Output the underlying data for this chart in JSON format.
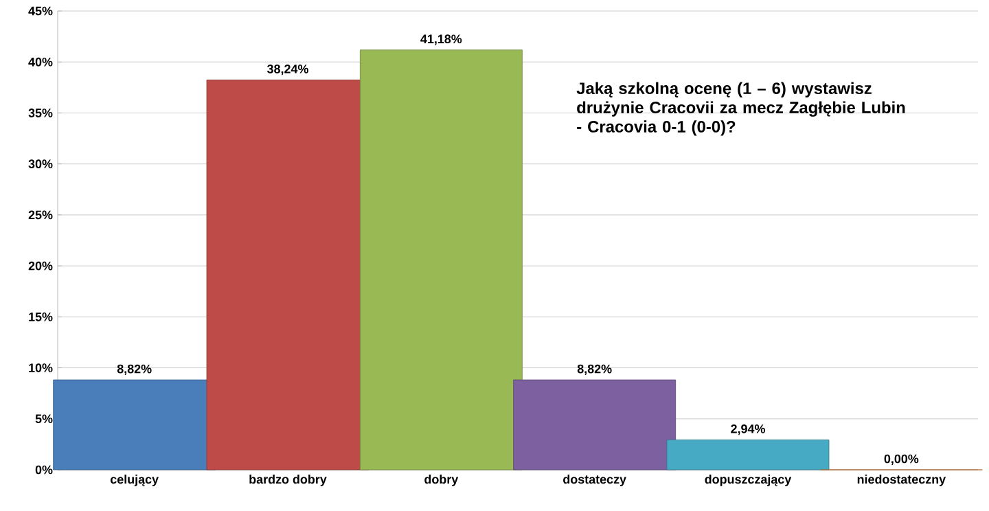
{
  "chart_data": {
    "type": "bar",
    "categories": [
      "celujący",
      "bardzo dobry",
      "dobry",
      "dostateczy",
      "dopuszczający",
      "niedostateczny"
    ],
    "values": [
      8.82,
      38.24,
      41.18,
      8.82,
      2.94,
      0.0
    ],
    "colors": [
      "#4a7ebb",
      "#be4b48",
      "#98b954",
      "#7d60a0",
      "#46aac5",
      "#f79646"
    ],
    "value_labels": [
      "8,82%",
      "38,24%",
      "41,18%",
      "8,82%",
      "2,94%",
      "0,00%"
    ],
    "ylim": [
      0,
      45
    ],
    "yticks": [
      {
        "value": 0,
        "label": "0%"
      },
      {
        "value": 5,
        "label": "5%"
      },
      {
        "value": 10,
        "label": "10%"
      },
      {
        "value": 15,
        "label": "15%"
      },
      {
        "value": 20,
        "label": "20%"
      },
      {
        "value": 25,
        "label": "25%"
      },
      {
        "value": 30,
        "label": "30%"
      },
      {
        "value": 35,
        "label": "35%"
      },
      {
        "value": 40,
        "label": "40%"
      },
      {
        "value": 45,
        "label": "45%"
      }
    ],
    "grid": "y",
    "annotations": [
      "Jaką szkolną ocenę (1 – 6) wystawisz drużynie Cracovii za mecz Zagłębie Lubin - Cracovia 0-1 (0-0)?"
    ]
  }
}
